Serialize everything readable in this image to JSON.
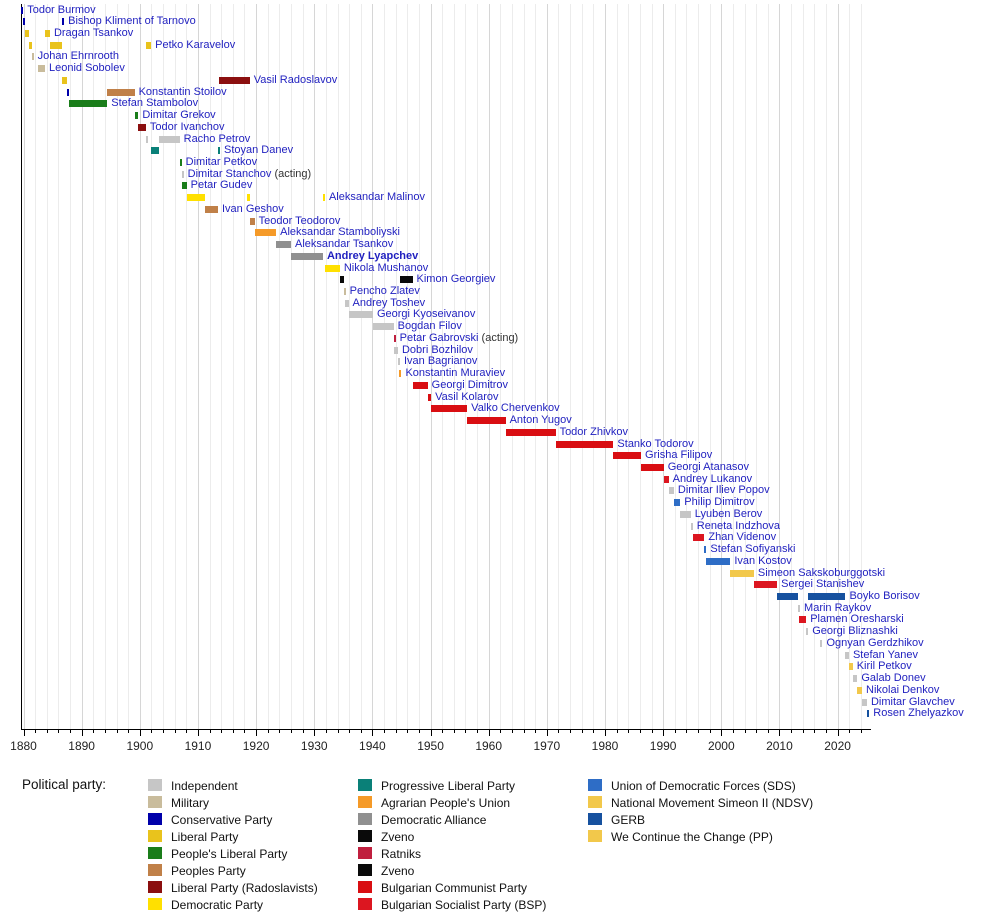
{
  "chart_data": {
    "type": "timeline",
    "title": "",
    "x_axis": {
      "tick_years": [
        1880,
        1890,
        1900,
        1910,
        1920,
        1930,
        1940,
        1950,
        1960,
        1970,
        1980,
        1990,
        2000,
        2010,
        2020
      ],
      "minor_step_years": 2,
      "range": [
        1879.3,
        2025.6
      ]
    },
    "parties": {
      "independent": {
        "label": "Independent",
        "color": "#c6c6c6"
      },
      "military": {
        "label": "Military",
        "color": "#c9bc9c"
      },
      "conservative": {
        "label": "Conservative Party",
        "color": "#0000aa"
      },
      "liberal": {
        "label": "Liberal Party",
        "color": "#e9c31c"
      },
      "peoples_liberal": {
        "label": "People's Liberal Party",
        "color": "#1a7d1a"
      },
      "peoples": {
        "label": "Peoples Party",
        "color": "#c08048"
      },
      "radoslavists": {
        "label": "Liberal Party (Radoslavists)",
        "color": "#8b0f0f"
      },
      "democratic": {
        "label": "Democratic Party",
        "color": "#ffe000"
      },
      "progressive_liberal": {
        "label": "Progressive Liberal Party",
        "color": "#0a8078"
      },
      "agrarian": {
        "label": "Agrarian People's Union",
        "color": "#f59a28"
      },
      "dem_alliance": {
        "label": "Democratic Alliance",
        "color": "#909090"
      },
      "zveno": {
        "label": "Zveno",
        "color": "#0a0a0a"
      },
      "ratniks": {
        "label": "Ratniks",
        "color": "#c01f3e"
      },
      "zveno2": {
        "label": "Zveno",
        "color": "#0a0a0a"
      },
      "bcp": {
        "label": "Bulgarian Communist Party",
        "color": "#d90e12"
      },
      "bsp": {
        "label": "Bulgarian Socialist Party (BSP)",
        "color": "#dc1620"
      },
      "sds": {
        "label": "Union of Democratic Forces (SDS)",
        "color": "#2e6dc6"
      },
      "ndsv": {
        "label": "National Movement Simeon II (NDSV)",
        "color": "#f2c84b"
      },
      "gerb": {
        "label": "GERB",
        "color": "#16519f"
      },
      "pp": {
        "label": "We Continue the Change (PP)",
        "color": "#f2c84b"
      }
    },
    "legend": {
      "title": "Political party:",
      "columns": [
        [
          "independent",
          "military",
          "conservative",
          "liberal",
          "peoples_liberal",
          "peoples",
          "radoslavists",
          "democratic"
        ],
        [
          "progressive_liberal",
          "agrarian",
          "dem_alliance",
          "zveno",
          "ratniks",
          "zveno2",
          "bcp",
          "bsp"
        ],
        [
          "sds",
          "ndsv",
          "gerb",
          "pp"
        ]
      ]
    },
    "people": [
      {
        "name": "Todor Burmov",
        "segments": [
          [
            1879.55,
            1879.95,
            "conservative"
          ]
        ]
      },
      {
        "name": "Bishop Kliment of Tarnovo",
        "segments": [
          [
            1879.95,
            1880.3,
            "conservative"
          ],
          [
            1886.65,
            1886.85,
            "conservative"
          ]
        ]
      },
      {
        "name": "Dragan Tsankov",
        "segments": [
          [
            1880.3,
            1880.95,
            "liberal"
          ],
          [
            1883.7,
            1884.55,
            "liberal"
          ]
        ]
      },
      {
        "name": "Petko Karavelov",
        "segments": [
          [
            1880.95,
            1881.4,
            "liberal"
          ],
          [
            1884.55,
            1886.65,
            "liberal"
          ],
          [
            1901.15,
            1901.95,
            "liberal"
          ]
        ]
      },
      {
        "name": "Johan Ehrnrooth",
        "segments": [
          [
            1881.4,
            1881.6,
            "military"
          ]
        ]
      },
      {
        "name": "Leonid Sobolev",
        "segments": [
          [
            1882.5,
            1883.7,
            "military"
          ]
        ]
      },
      {
        "name": "Vasil Radoslavov",
        "segments": [
          [
            1886.65,
            1887.55,
            "liberal"
          ],
          [
            1913.55,
            1918.9,
            "radoslavists"
          ]
        ]
      },
      {
        "name": "Konstantin Stoilov",
        "segments": [
          [
            1887.55,
            1887.75,
            "conservative"
          ],
          [
            1894.4,
            1899.1,
            "peoples"
          ]
        ]
      },
      {
        "name": "Stefan Stambolov",
        "segments": [
          [
            1887.75,
            1894.4,
            "peoples_liberal"
          ]
        ]
      },
      {
        "name": "Dimitar Grekov",
        "segments": [
          [
            1899.1,
            1899.75,
            "peoples_liberal"
          ]
        ]
      },
      {
        "name": "Todor Ivanchov",
        "segments": [
          [
            1899.75,
            1901.05,
            "radoslavists"
          ]
        ]
      },
      {
        "name": "Racho Petrov",
        "segments": [
          [
            1901.05,
            1901.2,
            "independent"
          ],
          [
            1903.35,
            1906.85,
            "independent"
          ]
        ]
      },
      {
        "name": "Stoyan Danev",
        "segments": [
          [
            1901.95,
            1903.35,
            "progressive_liberal"
          ],
          [
            1913.45,
            1913.55,
            "progressive_liberal"
          ]
        ]
      },
      {
        "name": "Dimitar Petkov",
        "segments": [
          [
            1906.85,
            1907.2,
            "peoples_liberal"
          ]
        ]
      },
      {
        "name": "Dimitar Stanchov",
        "suffix": " (acting)",
        "segments": [
          [
            1907.2,
            1907.3,
            "independent"
          ]
        ]
      },
      {
        "name": "Petar Gudev",
        "segments": [
          [
            1907.3,
            1908.05,
            "peoples_liberal"
          ]
        ]
      },
      {
        "name": "Aleksandar Malinov",
        "segments": [
          [
            1908.05,
            1911.2,
            "democratic"
          ],
          [
            1918.5,
            1918.9,
            "democratic"
          ],
          [
            1931.5,
            1931.8,
            "democratic"
          ]
        ]
      },
      {
        "name": "Ivan Geshov",
        "segments": [
          [
            1911.2,
            1913.45,
            "peoples"
          ]
        ]
      },
      {
        "name": "Teodor Teodorov",
        "segments": [
          [
            1918.9,
            1919.75,
            "peoples"
          ]
        ]
      },
      {
        "name": "Aleksandar Stamboliyski",
        "segments": [
          [
            1919.75,
            1923.45,
            "agrarian"
          ]
        ]
      },
      {
        "name": "Aleksandar Tsankov",
        "segments": [
          [
            1923.45,
            1926.0,
            "dem_alliance"
          ]
        ]
      },
      {
        "name": "Andrey Lyapchev",
        "bold": true,
        "segments": [
          [
            1926.0,
            1931.5,
            "dem_alliance"
          ]
        ]
      },
      {
        "name": "Nikola Mushanov",
        "segments": [
          [
            1931.8,
            1934.4,
            "democratic"
          ]
        ]
      },
      {
        "name": "Kimon Georgiev",
        "segments": [
          [
            1934.4,
            1935.05,
            "zveno"
          ],
          [
            1944.7,
            1946.9,
            "zveno"
          ]
        ]
      },
      {
        "name": "Pencho Zlatev",
        "segments": [
          [
            1935.05,
            1935.3,
            "military"
          ]
        ]
      },
      {
        "name": "Andrey Toshev",
        "segments": [
          [
            1935.3,
            1935.9,
            "independent"
          ]
        ]
      },
      {
        "name": "Georgi Kyoseivanov",
        "segments": [
          [
            1935.9,
            1940.1,
            "independent"
          ]
        ]
      },
      {
        "name": "Bogdan Filov",
        "segments": [
          [
            1940.1,
            1943.65,
            "independent"
          ]
        ]
      },
      {
        "name": "Petar Gabrovski",
        "suffix": " (acting)",
        "segments": [
          [
            1943.65,
            1943.78,
            "ratniks"
          ]
        ]
      },
      {
        "name": "Dobri Bozhilov",
        "segments": [
          [
            1943.78,
            1944.4,
            "independent"
          ]
        ]
      },
      {
        "name": "Ivan Bagrianov",
        "segments": [
          [
            1944.4,
            1944.65,
            "independent"
          ]
        ]
      },
      {
        "name": "Konstantin Muraviev",
        "segments": [
          [
            1944.65,
            1944.72,
            "agrarian"
          ]
        ]
      },
      {
        "name": "Georgi Dimitrov",
        "segments": [
          [
            1946.9,
            1949.5,
            "bcp"
          ]
        ]
      },
      {
        "name": "Vasil Kolarov",
        "segments": [
          [
            1949.5,
            1950.1,
            "bcp"
          ]
        ]
      },
      {
        "name": "Valko Chervenkov",
        "segments": [
          [
            1950.1,
            1956.3,
            "bcp"
          ]
        ]
      },
      {
        "name": "Anton Yugov",
        "segments": [
          [
            1956.3,
            1962.9,
            "bcp"
          ]
        ]
      },
      {
        "name": "Todor Zhivkov",
        "segments": [
          [
            1962.9,
            1971.5,
            "bcp"
          ]
        ]
      },
      {
        "name": "Stanko Todorov",
        "segments": [
          [
            1971.5,
            1981.45,
            "bcp"
          ]
        ]
      },
      {
        "name": "Grisha Filipov",
        "segments": [
          [
            1981.45,
            1986.2,
            "bcp"
          ]
        ]
      },
      {
        "name": "Georgi Atanasov",
        "segments": [
          [
            1986.2,
            1990.1,
            "bcp"
          ]
        ]
      },
      {
        "name": "Andrey Lukanov",
        "segments": [
          [
            1990.1,
            1990.95,
            "bsp"
          ]
        ]
      },
      {
        "name": "Dimitar Iliev Popov",
        "segments": [
          [
            1990.95,
            1991.85,
            "independent"
          ]
        ]
      },
      {
        "name": "Philip Dimitrov",
        "segments": [
          [
            1991.85,
            1992.95,
            "sds"
          ]
        ]
      },
      {
        "name": "Lyuben Berov",
        "segments": [
          [
            1992.95,
            1994.75,
            "independent"
          ]
        ]
      },
      {
        "name": "Reneta Indzhova",
        "segments": [
          [
            1994.75,
            1995.05,
            "independent"
          ]
        ]
      },
      {
        "name": "Zhan Videnov",
        "segments": [
          [
            1995.05,
            1997.1,
            "bsp"
          ]
        ]
      },
      {
        "name": "Stefan Sofiyanski",
        "segments": [
          [
            1997.1,
            1997.4,
            "sds"
          ]
        ]
      },
      {
        "name": "Ivan Kostov",
        "segments": [
          [
            1997.4,
            2001.55,
            "sds"
          ]
        ]
      },
      {
        "name": "Simeon Sakskoburggotski",
        "segments": [
          [
            2001.55,
            2005.6,
            "ndsv"
          ]
        ]
      },
      {
        "name": "Sergei Stanishev",
        "segments": [
          [
            2005.6,
            2009.6,
            "bsp"
          ]
        ]
      },
      {
        "name": "Boyko Borisov",
        "segments": [
          [
            2009.6,
            2013.2,
            "gerb"
          ],
          [
            2014.85,
            2021.35,
            "gerb"
          ]
        ]
      },
      {
        "name": "Marin Raykov",
        "segments": [
          [
            2013.2,
            2013.4,
            "independent"
          ]
        ]
      },
      {
        "name": "Plamen Oresharski",
        "segments": [
          [
            2013.4,
            2014.6,
            "bsp"
          ]
        ]
      },
      {
        "name": "Georgi Bliznashki",
        "segments": [
          [
            2014.6,
            2014.85,
            "independent"
          ]
        ]
      },
      {
        "name": "Ognyan Gerdzhikov",
        "segments": [
          [
            2017.05,
            2017.35,
            "independent"
          ]
        ]
      },
      {
        "name": "Stefan Yanev",
        "segments": [
          [
            2021.35,
            2021.95,
            "independent"
          ]
        ]
      },
      {
        "name": "Kiril Petkov",
        "segments": [
          [
            2021.95,
            2022.6,
            "pp"
          ]
        ]
      },
      {
        "name": "Galab Donev",
        "segments": [
          [
            2022.6,
            2023.4,
            "independent"
          ]
        ]
      },
      {
        "name": "Nikolai Denkov",
        "segments": [
          [
            2023.4,
            2024.2,
            "pp"
          ]
        ]
      },
      {
        "name": "Dimitar Glavchev",
        "segments": [
          [
            2024.2,
            2025.05,
            "independent"
          ]
        ]
      },
      {
        "name": "Rosen Zhelyazkov",
        "segments": [
          [
            2025.05,
            2025.45,
            "gerb"
          ]
        ]
      }
    ]
  }
}
